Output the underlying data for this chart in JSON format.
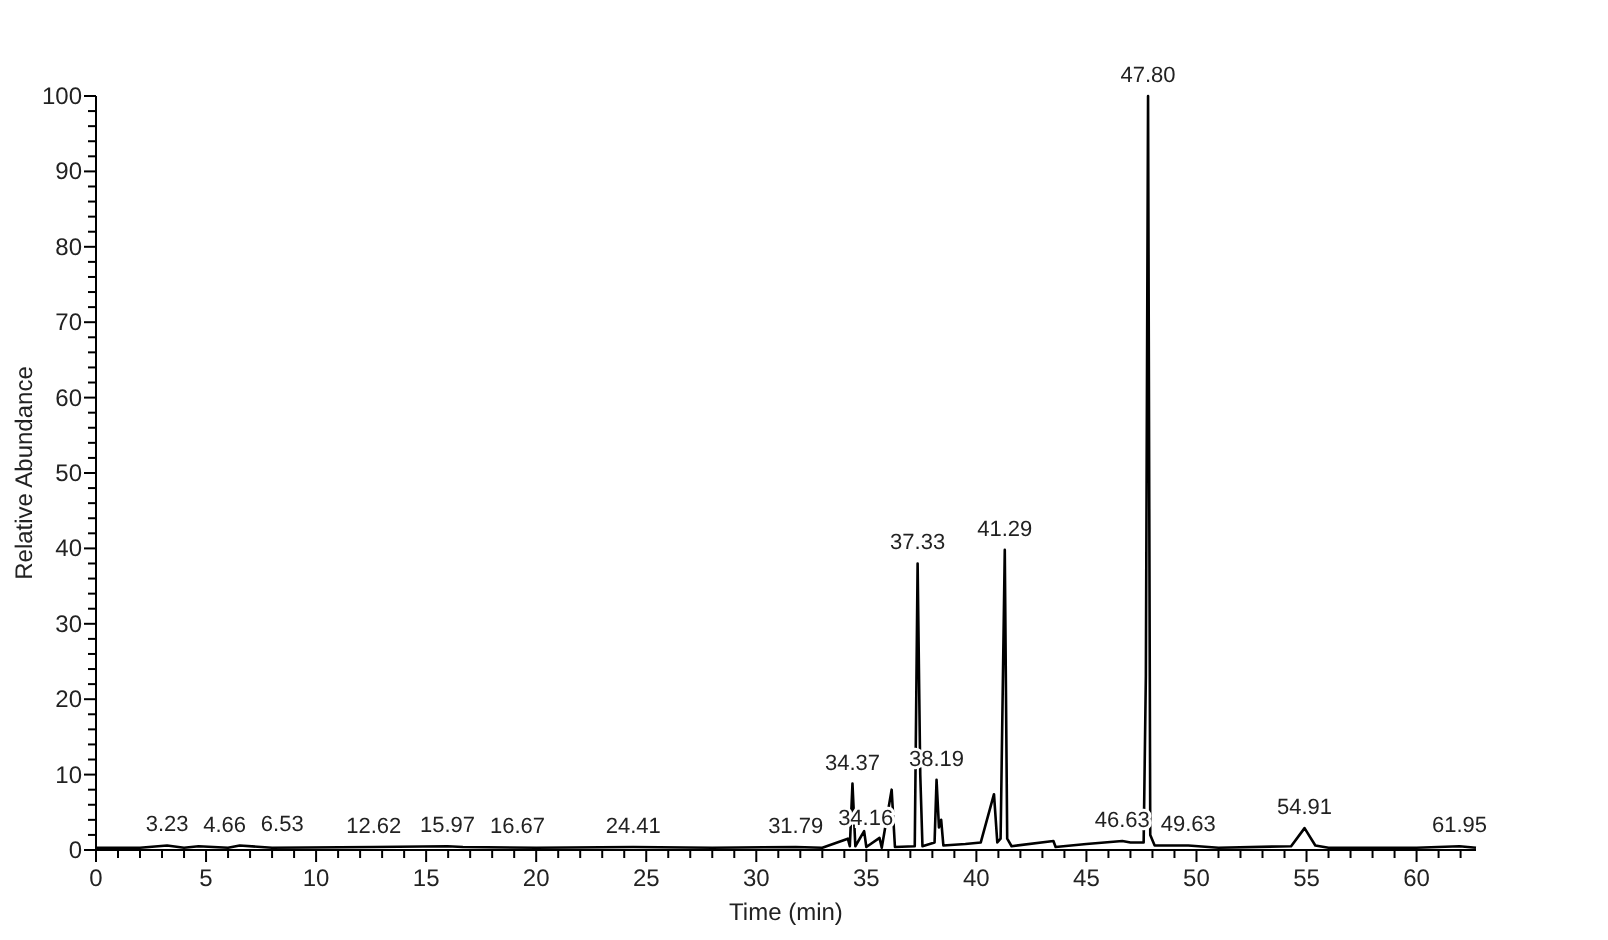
{
  "chart_data": {
    "type": "line",
    "xlabel": "Time (min)",
    "ylabel": "Relative Abundance",
    "xlim": [
      0,
      62.7
    ],
    "ylim": [
      0,
      100
    ],
    "xticks": [
      0,
      {
        "value": 1,
        "label": null
      },
      {
        "value": 2,
        "label": null
      },
      {
        "value": 3,
        "label": null
      },
      {
        "value": 4,
        "label": null
      },
      5,
      {
        "value": 6,
        "label": null
      },
      {
        "value": 7,
        "label": null
      },
      {
        "value": 8,
        "label": null
      },
      {
        "value": 9,
        "label": null
      },
      10,
      {
        "value": 11,
        "label": null
      },
      {
        "value": 12,
        "label": null
      },
      {
        "value": 13,
        "label": null
      },
      {
        "value": 14,
        "label": null
      },
      15,
      {
        "value": 16,
        "label": null
      },
      {
        "value": 17,
        "label": null
      },
      {
        "value": 18,
        "label": null
      },
      {
        "value": 19,
        "label": null
      },
      20,
      {
        "value": 21,
        "label": null
      },
      {
        "value": 22,
        "label": null
      },
      {
        "value": 23,
        "label": null
      },
      {
        "value": 24,
        "label": null
      },
      25,
      {
        "value": 26,
        "label": null
      },
      {
        "value": 27,
        "label": null
      },
      {
        "value": 28,
        "label": null
      },
      {
        "value": 29,
        "label": null
      },
      30,
      {
        "value": 31,
        "label": null
      },
      {
        "value": 32,
        "label": null
      },
      {
        "value": 33,
        "label": null
      },
      {
        "value": 34,
        "label": null
      },
      35,
      {
        "value": 36,
        "label": null
      },
      {
        "value": 37,
        "label": null
      },
      {
        "value": 38,
        "label": null
      },
      {
        "value": 39,
        "label": null
      },
      40,
      {
        "value": 41,
        "label": null
      },
      {
        "value": 42,
        "label": null
      },
      {
        "value": 43,
        "label": null
      },
      {
        "value": 44,
        "label": null
      },
      45,
      {
        "value": 46,
        "label": null
      },
      {
        "value": 47,
        "label": null
      },
      {
        "value": 48,
        "label": null
      },
      {
        "value": 49,
        "label": null
      },
      50,
      {
        "value": 51,
        "label": null
      },
      {
        "value": 52,
        "label": null
      },
      {
        "value": 53,
        "label": null
      },
      {
        "value": 54,
        "label": null
      },
      55,
      {
        "value": 56,
        "label": null
      },
      {
        "value": 57,
        "label": null
      },
      {
        "value": 58,
        "label": null
      },
      {
        "value": 59,
        "label": null
      },
      60,
      {
        "value": 61,
        "label": null
      },
      {
        "value": 62,
        "label": null
      }
    ],
    "yticks": [
      0,
      {
        "value": 2,
        "label": null
      },
      {
        "value": 4,
        "label": null
      },
      {
        "value": 6,
        "label": null
      },
      {
        "value": 8,
        "label": null
      },
      10,
      {
        "value": 12,
        "label": null
      },
      {
        "value": 14,
        "label": null
      },
      {
        "value": 16,
        "label": null
      },
      {
        "value": 18,
        "label": null
      },
      20,
      {
        "value": 22,
        "label": null
      },
      {
        "value": 24,
        "label": null
      },
      {
        "value": 26,
        "label": null
      },
      {
        "value": 28,
        "label": null
      },
      30,
      {
        "value": 32,
        "label": null
      },
      {
        "value": 34,
        "label": null
      },
      {
        "value": 36,
        "label": null
      },
      {
        "value": 38,
        "label": null
      },
      40,
      {
        "value": 42,
        "label": null
      },
      {
        "value": 44,
        "label": null
      },
      {
        "value": 46,
        "label": null
      },
      {
        "value": 48,
        "label": null
      },
      50,
      {
        "value": 52,
        "label": null
      },
      {
        "value": 54,
        "label": null
      },
      {
        "value": 56,
        "label": null
      },
      {
        "value": 58,
        "label": null
      },
      60,
      {
        "value": 62,
        "label": null
      },
      {
        "value": 64,
        "label": null
      },
      {
        "value": 66,
        "label": null
      },
      {
        "value": 68,
        "label": null
      },
      70,
      {
        "value": 72,
        "label": null
      },
      {
        "value": 74,
        "label": null
      },
      {
        "value": 76,
        "label": null
      },
      {
        "value": 78,
        "label": null
      },
      80,
      {
        "value": 82,
        "label": null
      },
      {
        "value": 84,
        "label": null
      },
      {
        "value": 86,
        "label": null
      },
      {
        "value": 88,
        "label": null
      },
      90,
      {
        "value": 92,
        "label": null
      },
      {
        "value": 94,
        "label": null
      },
      {
        "value": 96,
        "label": null
      },
      {
        "value": 98,
        "label": null
      },
      100
    ],
    "series": [
      {
        "color": "#000000",
        "x": [
          0,
          2,
          3.23,
          4,
          4.66,
          6,
          6.53,
          8,
          12.62,
          15.97,
          16.67,
          20,
          24.41,
          28,
          31.79,
          33,
          34.16,
          34.25,
          34.37,
          34.5,
          34.9,
          35.0,
          35.6,
          35.7,
          36.15,
          36.3,
          37.2,
          37.33,
          37.45,
          37.55,
          38.1,
          38.19,
          38.3,
          38.4,
          38.5,
          39.5,
          40.2,
          40.8,
          40.95,
          41.1,
          41.29,
          41.4,
          41.6,
          43.5,
          43.6,
          45,
          46.63,
          47,
          47.6,
          47.7,
          47.8,
          47.9,
          48.1,
          49.63,
          51,
          54.3,
          54.91,
          55.4,
          56,
          60,
          61.95,
          62.7
        ],
        "values": [
          0.3,
          0.3,
          0.6,
          0.3,
          0.5,
          0.3,
          0.6,
          0.3,
          0.4,
          0.5,
          0.4,
          0.3,
          0.4,
          0.3,
          0.4,
          0.3,
          1.5,
          0.5,
          8.8,
          0.5,
          2.5,
          0.4,
          1.6,
          0.3,
          8,
          0.4,
          0.5,
          38,
          10,
          0.5,
          1,
          9.3,
          3,
          4,
          0.6,
          0.8,
          1,
          7.4,
          1,
          1.5,
          39.8,
          1.5,
          0.5,
          1.2,
          0.4,
          0.8,
          1.2,
          1,
          1,
          23,
          100,
          2,
          0.6,
          0.6,
          0.3,
          0.5,
          2.9,
          0.6,
          0.3,
          0.3,
          0.5,
          0.3
        ]
      }
    ],
    "annotations": [
      {
        "text": "3.23",
        "x": 3.23,
        "y": 0.6
      },
      {
        "text": "4.66",
        "x": 4.66,
        "y": 0.5
      },
      {
        "text": "6.53",
        "x": 6.53,
        "y": 0.6
      },
      {
        "text": "12.62",
        "x": 12.62,
        "y": 0.4
      },
      {
        "text": "15.97",
        "x": 15.97,
        "y": 0.5
      },
      {
        "text": "16.67",
        "x": 16.67,
        "y": 0.4
      },
      {
        "text": "24.41",
        "x": 24.41,
        "y": 0.4
      },
      {
        "text": "31.79",
        "x": 31.79,
        "y": 0.4
      },
      {
        "text": "34.16",
        "x": 34.16,
        "y": 1.5
      },
      {
        "text": "34.37",
        "x": 34.37,
        "y": 8.8
      },
      {
        "text": "37.33",
        "x": 37.33,
        "y": 38
      },
      {
        "text": "38.19",
        "x": 38.19,
        "y": 9.3
      },
      {
        "text": "41.29",
        "x": 41.29,
        "y": 39.8
      },
      {
        "text": "46.63",
        "x": 46.63,
        "y": 1.2
      },
      {
        "text": "47.80",
        "x": 47.8,
        "y": 100
      },
      {
        "text": "49.63",
        "x": 49.63,
        "y": 0.6
      },
      {
        "text": "54.91",
        "x": 54.91,
        "y": 2.9
      },
      {
        "text": "61.95",
        "x": 61.95,
        "y": 0.5
      }
    ]
  }
}
